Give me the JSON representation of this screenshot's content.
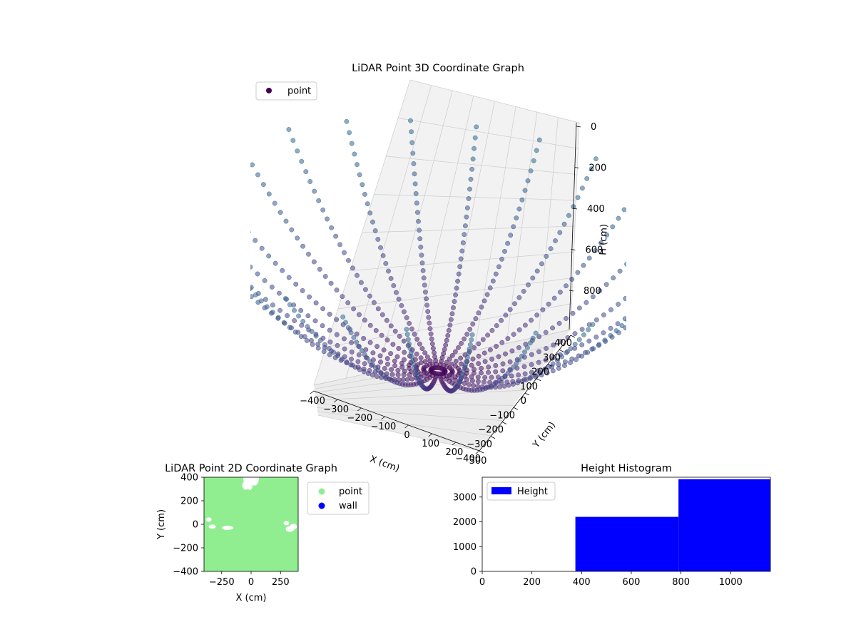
{
  "chart_data": [
    {
      "type": "scatter",
      "projection": "3d",
      "title": "LiDAR Point 3D Coordinate Graph",
      "xlabel": "X (cm)",
      "ylabel": "Y (cm)",
      "zlabel": "H (cm)",
      "x_ticks": [
        "−400",
        "−300",
        "−200",
        "−100",
        "0",
        "100",
        "200",
        "300"
      ],
      "y_ticks": [
        "400",
        "300",
        "200",
        "100",
        "0",
        "−100",
        "−200",
        "−300",
        "−400"
      ],
      "z_ticks": [
        "0",
        "200",
        "400",
        "600",
        "800"
      ],
      "xlim": [
        -400,
        400
      ],
      "ylim": [
        -400,
        400
      ],
      "zlim": [
        0,
        1000
      ],
      "z_inverted": true,
      "colormap": "viridis",
      "legend": {
        "position": "top-left",
        "entries": [
          "point"
        ]
      },
      "series": [
        {
          "name": "point",
          "description_values": {
            "radial_rays": 24,
            "points_per_ray": 35,
            "max_radius_cm": 400,
            "max_height_cm": 1100
          }
        }
      ],
      "grid": true
    },
    {
      "type": "scatter",
      "title": "LiDAR Point 2D Coordinate Graph",
      "xlabel": "X (cm)",
      "ylabel": "Y (cm)",
      "x_ticks": [
        "−250",
        "0",
        "250"
      ],
      "y_ticks": [
        "400",
        "200",
        "0",
        "−200",
        "−400"
      ],
      "xlim": [
        -400,
        400
      ],
      "ylim": [
        -400,
        400
      ],
      "legend": {
        "position": "right",
        "entries": [
          "point",
          "wall"
        ]
      },
      "series": [
        {
          "name": "point",
          "color": "#90ee90"
        },
        {
          "name": "wall",
          "color": "#0000ff"
        }
      ]
    },
    {
      "type": "bar",
      "subtype": "histogram",
      "title": "Height Histogram",
      "x_ticks": [
        "0",
        "200",
        "400",
        "600",
        "800",
        "1000"
      ],
      "y_ticks": [
        "0",
        "1000",
        "2000",
        "3000"
      ],
      "xlim": [
        0,
        1160
      ],
      "ylim": [
        0,
        3800
      ],
      "bins": [
        {
          "start": 0,
          "end": 375,
          "count": 0
        },
        {
          "start": 375,
          "end": 790,
          "count": 2200
        },
        {
          "start": 790,
          "end": 1160,
          "count": 3720
        }
      ],
      "color": "#0000ff",
      "legend": {
        "position": "top-left",
        "entries": [
          "Height"
        ]
      }
    }
  ]
}
